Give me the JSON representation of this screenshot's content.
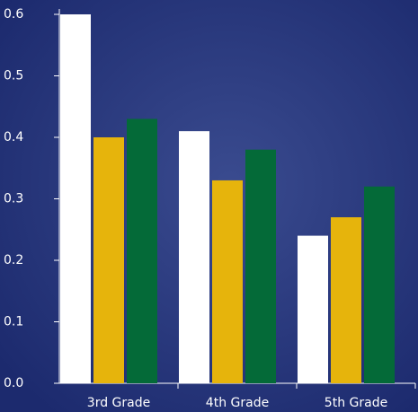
{
  "chart_data": {
    "type": "bar",
    "categories": [
      "3rd Grade",
      "4th Grade",
      "5th Grade"
    ],
    "series": [
      {
        "color": "#ffffff",
        "values": [
          0.6,
          0.41,
          0.24
        ]
      },
      {
        "color": "#e6b40c",
        "values": [
          0.4,
          0.33,
          0.27
        ]
      },
      {
        "color": "#046a38",
        "values": [
          0.43,
          0.38,
          0.32
        ]
      }
    ],
    "ylim": [
      0,
      0.6
    ],
    "yticks": [
      {
        "value": 0,
        "label": "0.0"
      },
      0.1,
      0.2,
      0.3,
      0.4,
      0.5,
      0.6
    ]
  }
}
